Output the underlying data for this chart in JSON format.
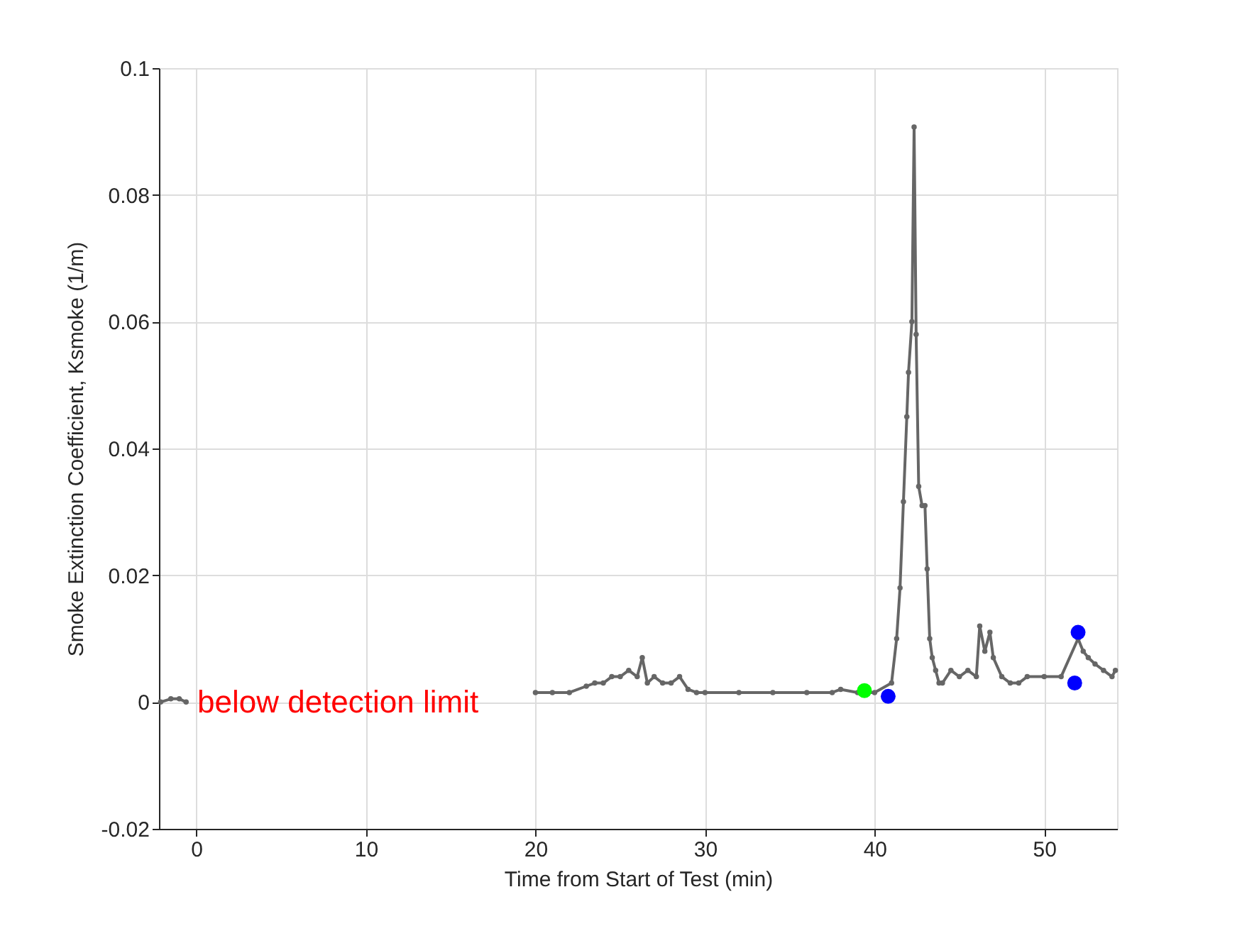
{
  "chart_data": {
    "type": "line",
    "xlabel": "Time from Start of Test (min)",
    "ylabel": "Smoke Extinction Coefficient, Ksmoke (1/m)",
    "xlim": [
      -2.2,
      54.3
    ],
    "ylim": [
      -0.02,
      0.1
    ],
    "xticks": [
      0,
      10,
      20,
      30,
      40,
      50
    ],
    "yticks": [
      -0.02,
      0,
      0.02,
      0.04,
      0.06,
      0.08,
      0.1
    ],
    "grid": true,
    "marker": "circle",
    "line_style": "solid",
    "annotations": [
      "below detection limit"
    ],
    "series": [
      {
        "color": "#656565",
        "x": [
          -2.1,
          -1.5,
          -1.0,
          -0.6
        ],
        "values": [
          0.0,
          0.0005,
          0.0005,
          0.0
        ]
      },
      {
        "color": "#666666",
        "x": [
          20.0,
          21.0,
          22.0,
          23.0,
          23.5,
          24.0,
          24.5,
          25.0,
          25.5,
          26.0,
          26.3,
          26.6,
          27.0,
          27.5,
          28.0,
          28.5,
          29.0,
          29.5,
          30.0,
          32.0,
          34.0,
          36.0,
          37.5,
          38.0,
          39.0,
          40.0,
          41.0,
          41.3,
          41.5,
          41.7,
          41.9,
          42.0,
          42.2,
          42.33,
          42.45,
          42.6,
          42.8,
          42.97,
          43.1,
          43.25,
          43.4,
          43.6,
          43.8,
          44.0,
          44.5,
          45.0,
          45.5,
          46.0,
          46.2,
          46.5,
          46.8,
          47.0,
          47.5,
          48.0,
          48.5,
          49.0,
          50.0,
          51.0,
          52.0,
          52.3,
          52.6,
          53.0,
          53.5,
          54.0,
          54.2
        ],
        "values": [
          0.0015,
          0.0015,
          0.0015,
          0.0025,
          0.003,
          0.003,
          0.004,
          0.004,
          0.005,
          0.004,
          0.007,
          0.003,
          0.004,
          0.003,
          0.003,
          0.004,
          0.002,
          0.0015,
          0.0015,
          0.0015,
          0.0015,
          0.0015,
          0.0015,
          0.002,
          0.0015,
          0.0015,
          0.003,
          0.01,
          0.018,
          0.0316,
          0.045,
          0.052,
          0.06,
          0.0907,
          0.058,
          0.034,
          0.031,
          0.031,
          0.021,
          0.01,
          0.007,
          0.005,
          0.003,
          0.003,
          0.005,
          0.004,
          0.005,
          0.004,
          0.012,
          0.008,
          0.011,
          0.007,
          0.004,
          0.003,
          0.003,
          0.004,
          0.004,
          0.004,
          0.01,
          0.008,
          0.007,
          0.006,
          0.005,
          0.004,
          0.005
        ]
      },
      {
        "type": "scatter",
        "color": "#00ff00",
        "x": [
          39.4
        ],
        "values": [
          0.0018
        ]
      },
      {
        "type": "scatter",
        "color": "#0000ff",
        "x": [
          40.8,
          51.8,
          52.0
        ],
        "values": [
          0.0009,
          0.003,
          0.011
        ]
      }
    ]
  }
}
